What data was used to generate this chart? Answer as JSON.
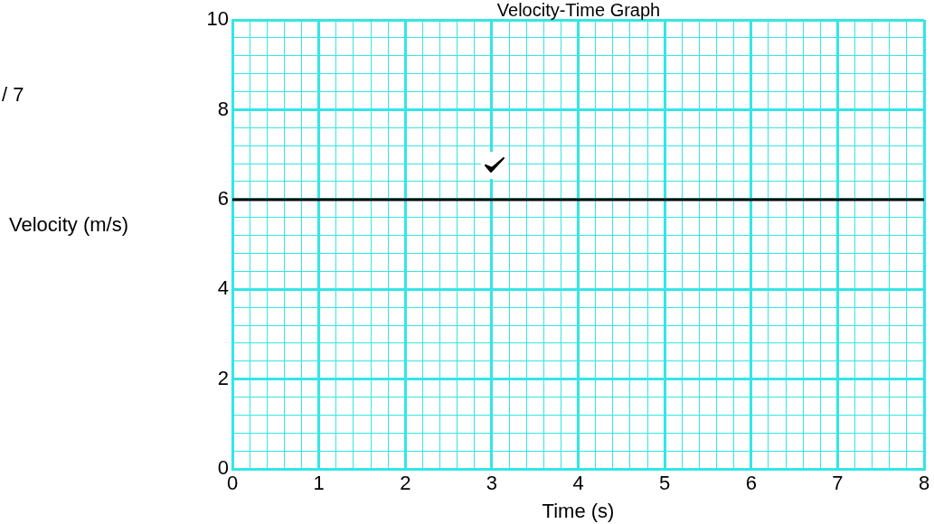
{
  "chart_data": {
    "type": "line",
    "title": "Velocity-Time Graph",
    "xlabel": "Time (s)",
    "ylabel": "Velocity (m/s)",
    "annotations": [
      "/ 7"
    ],
    "x": [
      0,
      8
    ],
    "series": [
      {
        "color": "#000000",
        "values": [
          6,
          6
        ]
      }
    ],
    "xlim": [
      0,
      8
    ],
    "xticks": [
      0,
      {
        "value": 0.2,
        "label": null
      },
      {
        "value": 0.4,
        "label": null
      },
      {
        "value": 0.6,
        "label": null
      },
      {
        "value": 0.8,
        "label": null
      },
      1,
      {
        "value": 1.2,
        "label": null
      },
      {
        "value": 1.4,
        "label": null
      },
      {
        "value": 1.6,
        "label": null
      },
      {
        "value": 1.8,
        "label": null
      },
      2,
      {
        "value": 2.2,
        "label": null
      },
      {
        "value": 2.4,
        "label": null
      },
      {
        "value": 2.6,
        "label": null
      },
      {
        "value": 2.8,
        "label": null
      },
      3,
      {
        "value": 3.2,
        "label": null
      },
      {
        "value": 3.4,
        "label": null
      },
      {
        "value": 3.6,
        "label": null
      },
      {
        "value": 3.8,
        "label": null
      },
      4,
      {
        "value": 4.2,
        "label": null
      },
      {
        "value": 4.4,
        "label": null
      },
      {
        "value": 4.6,
        "label": null
      },
      {
        "value": 4.8,
        "label": null
      },
      5,
      {
        "value": 5.2,
        "label": null
      },
      {
        "value": 5.4,
        "label": null
      },
      {
        "value": 5.6,
        "label": null
      },
      {
        "value": 5.8,
        "label": null
      },
      6,
      {
        "value": 6.2,
        "label": null
      },
      {
        "value": 6.4,
        "label": null
      },
      {
        "value": 6.6,
        "label": null
      },
      {
        "value": 6.8,
        "label": null
      },
      7,
      {
        "value": 7.2,
        "label": null
      },
      {
        "value": 7.4,
        "label": null
      },
      {
        "value": 7.6,
        "label": null
      },
      {
        "value": 7.8,
        "label": null
      },
      8
    ],
    "ylim": [
      0,
      10
    ],
    "yticks": [
      0,
      {
        "value": 0.4,
        "label": null
      },
      {
        "value": 0.8,
        "label": null
      },
      {
        "value": 1.2,
        "label": null
      },
      {
        "value": 1.6,
        "label": null
      },
      2,
      {
        "value": 2.4,
        "label": null
      },
      {
        "value": 2.8,
        "label": null
      },
      {
        "value": 3.2,
        "label": null
      },
      {
        "value": 3.6,
        "label": null
      },
      4,
      {
        "value": 4.4,
        "label": null
      },
      {
        "value": 4.8,
        "label": null
      },
      {
        "value": 5.2,
        "label": null
      },
      {
        "value": 5.6,
        "label": null
      },
      6,
      {
        "value": 6.4,
        "label": null
      },
      {
        "value": 6.8,
        "label": null
      },
      {
        "value": 7.2,
        "label": null
      },
      {
        "value": 7.6,
        "label": null
      },
      8,
      {
        "value": 8.4,
        "label": null
      },
      {
        "value": 8.8,
        "label": null
      },
      {
        "value": 9.2,
        "label": null
      },
      {
        "value": 9.6,
        "label": null
      },
      10
    ],
    "grid": true,
    "legend": false,
    "marker": "none",
    "line_style": "solid"
  }
}
